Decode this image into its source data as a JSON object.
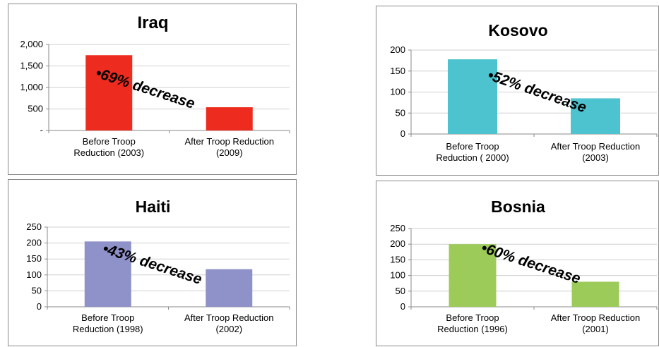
{
  "chart_data": [
    {
      "type": "bar",
      "title": "Iraq",
      "categories": [
        [
          "Before Troop",
          "Reduction (2003)"
        ],
        [
          "After Troop Reduction",
          "(2009)"
        ]
      ],
      "values": [
        1750,
        540
      ],
      "ylim": [
        0,
        2000
      ],
      "yticks": [
        0,
        500,
        1000,
        1500,
        2000
      ],
      "ytick_labels": [
        "-",
        "500",
        "1,000",
        "1,500",
        "2,000"
      ],
      "color": "#ee2b1f",
      "annotation": "•69% decrease",
      "grid": true,
      "legend": "none"
    },
    {
      "type": "bar",
      "title": "Kosovo",
      "categories": [
        [
          "Before Troop",
          "Reduction ( 2000)"
        ],
        [
          "After Troop Reduction",
          "(2003)"
        ]
      ],
      "values": [
        178,
        85
      ],
      "ylim": [
        0,
        200
      ],
      "yticks": [
        0,
        50,
        100,
        150,
        200
      ],
      "ytick_labels": [
        "0",
        "50",
        "100",
        "150",
        "200"
      ],
      "color": "#4cc3cf",
      "annotation": "•52% decrease",
      "grid": true,
      "legend": "none"
    },
    {
      "type": "bar",
      "title": "Haiti",
      "categories": [
        [
          "Before Troop",
          "Reduction (1998)"
        ],
        [
          "After Troop Reduction",
          "(2002)"
        ]
      ],
      "values": [
        205,
        118
      ],
      "ylim": [
        0,
        250
      ],
      "yticks": [
        0,
        50,
        100,
        150,
        200,
        250
      ],
      "ytick_labels": [
        "0",
        "50",
        "100",
        "150",
        "200",
        "250"
      ],
      "color": "#8f91c9",
      "annotation": "•43% decrease",
      "grid": true,
      "legend": "none"
    },
    {
      "type": "bar",
      "title": "Bosnia",
      "categories": [
        [
          "Before Troop",
          "Reduction (1996)"
        ],
        [
          "After Troop Reduction",
          "(2001)"
        ]
      ],
      "values": [
        200,
        80
      ],
      "ylim": [
        0,
        250
      ],
      "yticks": [
        0,
        50,
        100,
        150,
        200,
        250
      ],
      "ytick_labels": [
        "0",
        "50",
        "100",
        "150",
        "200",
        "250"
      ],
      "color": "#9ccb5a",
      "annotation": "•60% decrease",
      "grid": true,
      "legend": "none"
    }
  ]
}
